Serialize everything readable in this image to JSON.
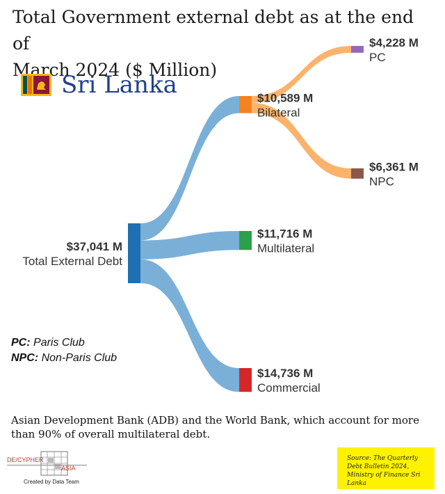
{
  "title_line1": "Total Government external debt as at the end of",
  "title_line2": "March 2024 ($ Million)",
  "country": "Sri Lanka",
  "definitions": {
    "pc_key": "PC:",
    "pc_value": "Paris Club",
    "npc_key": "NPC:",
    "npc_value": "Non-Paris Club"
  },
  "note": "Asian Development Bank (ADB) and the World Bank, which account for more than 90% of overall multilateral debt.",
  "logo": {
    "brand_left": "DE/CYPHER",
    "brand_right": "ASIA",
    "credit": "Created by Data Team"
  },
  "source": "Source: The Quarterly Debt Bulletin 2024, Ministry of Finance Sri Lanka",
  "colors": {
    "total": "#1f6fb2",
    "bilateral": "#f58220",
    "multilateral": "#2ca04a",
    "commercial": "#d62728",
    "pc": "#9467bd",
    "npc": "#8c564b",
    "link_blue": "#7ab0d8",
    "link_orange": "#fbb36c",
    "source_bg": "#fff200"
  },
  "chart_data": {
    "type": "sankey",
    "unit": "$ Million",
    "nodes": [
      {
        "id": "total",
        "label": "Total External Debt",
        "value_label": "$37,041 M",
        "value": 37041
      },
      {
        "id": "bilateral",
        "label": "Bilateral",
        "value_label": "$10,589 M",
        "value": 10589
      },
      {
        "id": "multilateral",
        "label": "Multilateral",
        "value_label": "$11,716 M",
        "value": 11716
      },
      {
        "id": "commercial",
        "label": "Commercial",
        "value_label": "$14,736 M",
        "value": 14736
      },
      {
        "id": "pc",
        "label": "PC",
        "value_label": "$4,228 M",
        "value": 4228
      },
      {
        "id": "npc",
        "label": "NPC",
        "value_label": "$6,361 M",
        "value": 6361
      }
    ],
    "links": [
      {
        "source": "total",
        "target": "bilateral",
        "value": 10589
      },
      {
        "source": "total",
        "target": "multilateral",
        "value": 11716
      },
      {
        "source": "total",
        "target": "commercial",
        "value": 14736
      },
      {
        "source": "bilateral",
        "target": "pc",
        "value": 4228
      },
      {
        "source": "bilateral",
        "target": "npc",
        "value": 6361
      }
    ]
  }
}
